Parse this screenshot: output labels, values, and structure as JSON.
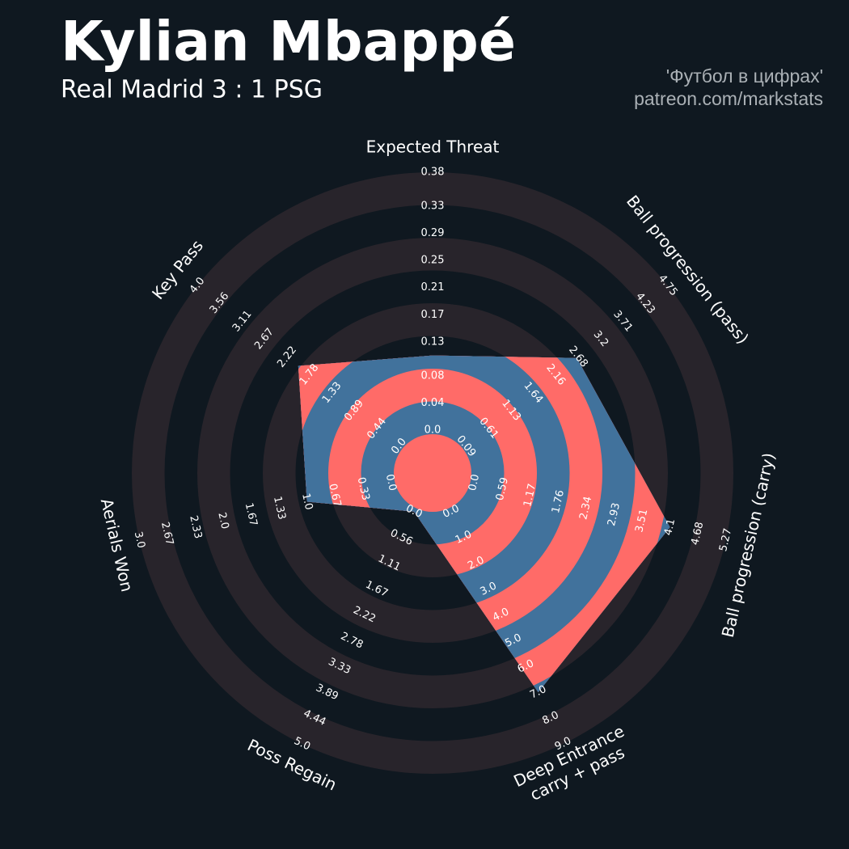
{
  "chart_data": {
    "type": "radar",
    "title": "Kylian Mbappé",
    "subtitle": "Real Madrid 3 : 1 PSG",
    "credits": [
      "'Футбол в цифрах'",
      "patreon.com/markstats"
    ],
    "color": "#41729c",
    "ring_color": "#ff6b68",
    "background_ring_color": "#28242b",
    "params": [
      {
        "name_lines": [
          "Expected Threat"
        ],
        "range": [
          0,
          0.38
        ],
        "value": 0.11,
        "ticks": [
          {
            "value": 0,
            "label": "0.0"
          },
          0.04,
          0.08,
          0.13,
          0.17,
          0.21,
          0.25,
          0.29,
          0.33,
          0.38
        ]
      },
      {
        "name_lines": [
          "Ball progression (pass)"
        ],
        "range": [
          0.09,
          4.75
        ],
        "value": 2.65,
        "ticks": [
          0.09,
          0.61,
          1.13,
          1.64,
          2.16,
          2.68,
          3.2,
          3.71,
          4.23,
          4.75
        ]
      },
      {
        "name_lines": [
          "Ball progression (carry)"
        ],
        "range": [
          0,
          5.27
        ],
        "value": 4.1,
        "ticks": [
          {
            "value": 0,
            "label": "0.0"
          },
          0.59,
          1.17,
          1.76,
          2.34,
          2.93,
          3.51,
          4.1,
          4.68,
          5.27
        ]
      },
      {
        "name_lines": [
          "Deep Entrance",
          "carry + pass"
        ],
        "range": [
          0,
          9
        ],
        "value": 7,
        "ticks": [
          {
            "value": 0,
            "label": "0.0"
          },
          {
            "value": 1,
            "label": "1.0"
          },
          {
            "value": 2,
            "label": "2.0"
          },
          {
            "value": 3,
            "label": "3.0"
          },
          {
            "value": 4,
            "label": "4.0"
          },
          {
            "value": 5,
            "label": "5.0"
          },
          {
            "value": 6,
            "label": "6.0"
          },
          {
            "value": 7,
            "label": "7.0"
          },
          {
            "value": 8,
            "label": "8.0"
          },
          {
            "value": 9,
            "label": "9.0"
          }
        ]
      },
      {
        "name_lines": [
          "Poss Regain"
        ],
        "range": [
          0,
          5
        ],
        "value": 0,
        "ticks": [
          {
            "value": 0,
            "label": "0.0"
          },
          0.56,
          1.11,
          1.67,
          2.22,
          2.78,
          3.33,
          3.89,
          4.44,
          {
            "value": 5,
            "label": "5.0"
          }
        ]
      },
      {
        "name_lines": [
          "Aerials Won"
        ],
        "range": [
          0,
          3
        ],
        "value": 1,
        "ticks": [
          {
            "value": 0,
            "label": "0.0"
          },
          0.33,
          0.67,
          {
            "value": 1,
            "label": "1.0"
          },
          1.33,
          1.67,
          {
            "value": 2,
            "label": "2.0"
          },
          2.33,
          2.67,
          {
            "value": 3,
            "label": "3.0"
          }
        ]
      },
      {
        "name_lines": [
          "Key Pass"
        ],
        "range": [
          0,
          4
        ],
        "value": 2,
        "ticks": [
          {
            "value": 0,
            "label": "0.0"
          },
          0.44,
          0.89,
          1.33,
          1.78,
          2.22,
          2.67,
          3.11,
          3.56,
          {
            "value": 4,
            "label": "4.0"
          }
        ]
      }
    ]
  }
}
